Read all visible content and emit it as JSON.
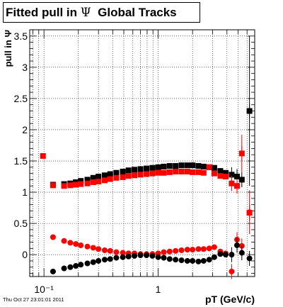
{
  "title": {
    "prefix": "Fitted pull in ",
    "symbol": "Ψ",
    "suffix": "Global Tracks"
  },
  "timestamp": "Thu Oct 27 23:01:01 2011",
  "chart_data": {
    "type": "scatter",
    "xlabel": "pT (GeV/c)",
    "ylabel": "pull in Ψ",
    "xscale": "log",
    "xlim": [
      0.075,
      7.0
    ],
    "ylim": [
      -0.35,
      3.6
    ],
    "grid": true,
    "x_tick_labels": [
      "10⁻¹",
      "1"
    ],
    "y_tick_labels": [
      "0",
      "0.5",
      "1",
      "1.5",
      "2",
      "2.5",
      "3",
      "3.5"
    ],
    "colors": {
      "black": "#000000",
      "red": "#ff0000"
    },
    "series": [
      {
        "color": "black",
        "marker": "square",
        "role": "mean",
        "points": [
          [
            0.12,
            1.12
          ],
          [
            0.15,
            1.13
          ],
          [
            0.17,
            1.14
          ],
          [
            0.19,
            1.16
          ],
          [
            0.21,
            1.18
          ],
          [
            0.24,
            1.2
          ],
          [
            0.27,
            1.23
          ],
          [
            0.3,
            1.25
          ],
          [
            0.34,
            1.27
          ],
          [
            0.38,
            1.29
          ],
          [
            0.43,
            1.31
          ],
          [
            0.49,
            1.33
          ],
          [
            0.55,
            1.35
          ],
          [
            0.62,
            1.36
          ],
          [
            0.7,
            1.37
          ],
          [
            0.79,
            1.38
          ],
          [
            0.89,
            1.39
          ],
          [
            1.0,
            1.4
          ],
          [
            1.12,
            1.41
          ],
          [
            1.26,
            1.42
          ],
          [
            1.42,
            1.42
          ],
          [
            1.6,
            1.43
          ],
          [
            1.8,
            1.43
          ],
          [
            2.0,
            1.43
          ],
          [
            2.25,
            1.42
          ],
          [
            2.5,
            1.41
          ],
          [
            2.8,
            1.4
          ],
          [
            3.1,
            1.39
          ],
          [
            3.5,
            1.34
          ],
          [
            3.9,
            1.31
          ],
          [
            4.4,
            1.28
          ],
          [
            4.9,
            1.25
          ],
          [
            5.4,
            1.2
          ],
          [
            6.3,
            2.3
          ]
        ]
      },
      {
        "color": "red",
        "marker": "square",
        "role": "mean",
        "points": [
          [
            0.098,
            1.58
          ],
          [
            0.12,
            1.11
          ],
          [
            0.15,
            1.1
          ],
          [
            0.17,
            1.11
          ],
          [
            0.19,
            1.12
          ],
          [
            0.21,
            1.13
          ],
          [
            0.24,
            1.14
          ],
          [
            0.27,
            1.16
          ],
          [
            0.3,
            1.17
          ],
          [
            0.34,
            1.19
          ],
          [
            0.38,
            1.21
          ],
          [
            0.43,
            1.23
          ],
          [
            0.49,
            1.24
          ],
          [
            0.55,
            1.26
          ],
          [
            0.62,
            1.27
          ],
          [
            0.7,
            1.28
          ],
          [
            0.79,
            1.29
          ],
          [
            0.89,
            1.3
          ],
          [
            1.0,
            1.31
          ],
          [
            1.12,
            1.31
          ],
          [
            1.26,
            1.32
          ],
          [
            1.42,
            1.33
          ],
          [
            1.6,
            1.33
          ],
          [
            1.8,
            1.33
          ],
          [
            2.0,
            1.32
          ],
          [
            2.25,
            1.32
          ],
          [
            2.5,
            1.31
          ],
          [
            2.8,
            1.4
          ],
          [
            3.1,
            1.3
          ],
          [
            3.5,
            1.26
          ],
          [
            3.9,
            1.25
          ],
          [
            4.4,
            1.14
          ],
          [
            4.9,
            1.1
          ],
          [
            5.4,
            1.62
          ],
          [
            6.3,
            0.67
          ]
        ]
      },
      {
        "color": "red",
        "marker": "circle",
        "role": "sigma",
        "points": [
          [
            0.12,
            0.28
          ],
          [
            0.15,
            0.22
          ],
          [
            0.17,
            0.19
          ],
          [
            0.19,
            0.17
          ],
          [
            0.21,
            0.15
          ],
          [
            0.24,
            0.13
          ],
          [
            0.27,
            0.11
          ],
          [
            0.3,
            0.09
          ],
          [
            0.34,
            0.07
          ],
          [
            0.38,
            0.06
          ],
          [
            0.43,
            0.04
          ],
          [
            0.49,
            0.03
          ],
          [
            0.55,
            0.02
          ],
          [
            0.62,
            0.02
          ],
          [
            0.7,
            0.01
          ],
          [
            0.79,
            0.01
          ],
          [
            0.89,
            0.01
          ],
          [
            1.0,
            0.02
          ],
          [
            1.12,
            0.04
          ],
          [
            1.26,
            0.05
          ],
          [
            1.42,
            0.06
          ],
          [
            1.6,
            0.07
          ],
          [
            1.8,
            0.08
          ],
          [
            2.0,
            0.08
          ],
          [
            2.25,
            0.09
          ],
          [
            2.5,
            0.09
          ],
          [
            2.8,
            0.1
          ],
          [
            3.1,
            0.12
          ],
          [
            3.5,
            0.05
          ],
          [
            3.9,
            0.02
          ],
          [
            4.4,
            -0.27
          ],
          [
            4.9,
            0.24
          ],
          [
            5.4,
            0.14
          ],
          [
            6.3,
            0.68
          ]
        ]
      },
      {
        "color": "black",
        "marker": "circle",
        "role": "sigma",
        "points": [
          [
            0.12,
            -0.27
          ],
          [
            0.15,
            -0.22
          ],
          [
            0.17,
            -0.2
          ],
          [
            0.19,
            -0.18
          ],
          [
            0.21,
            -0.16
          ],
          [
            0.24,
            -0.14
          ],
          [
            0.27,
            -0.12
          ],
          [
            0.3,
            -0.1
          ],
          [
            0.34,
            -0.08
          ],
          [
            0.38,
            -0.07
          ],
          [
            0.43,
            -0.05
          ],
          [
            0.49,
            -0.04
          ],
          [
            0.55,
            -0.03
          ],
          [
            0.62,
            -0.02
          ],
          [
            0.7,
            -0.01
          ],
          [
            0.79,
            -0.01
          ],
          [
            0.89,
            -0.02
          ],
          [
            1.0,
            -0.04
          ],
          [
            1.12,
            -0.05
          ],
          [
            1.26,
            -0.07
          ],
          [
            1.42,
            -0.08
          ],
          [
            1.6,
            -0.09
          ],
          [
            1.8,
            -0.1
          ],
          [
            2.0,
            -0.1
          ],
          [
            2.25,
            -0.11
          ],
          [
            2.5,
            -0.1
          ],
          [
            2.8,
            -0.08
          ],
          [
            3.1,
            -0.04
          ],
          [
            3.5,
            0.01
          ],
          [
            3.9,
            0.0
          ],
          [
            4.4,
            0.0
          ],
          [
            4.9,
            0.15
          ],
          [
            5.4,
            0.03
          ],
          [
            6.3,
            -0.06
          ]
        ]
      }
    ]
  }
}
